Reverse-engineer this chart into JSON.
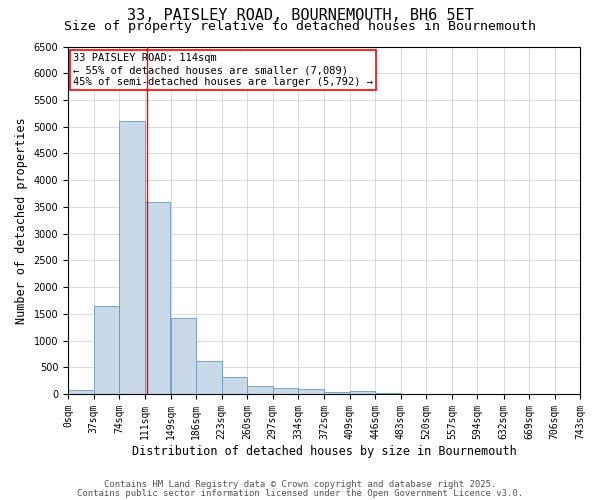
{
  "title1": "33, PAISLEY ROAD, BOURNEMOUTH, BH6 5ET",
  "title2": "Size of property relative to detached houses in Bournemouth",
  "xlabel": "Distribution of detached houses by size in Bournemouth",
  "ylabel": "Number of detached properties",
  "bar_left_edges": [
    0,
    37,
    74,
    111,
    149,
    186,
    223,
    260,
    297,
    334,
    372,
    409,
    446,
    483,
    520,
    557,
    594,
    632,
    669,
    706
  ],
  "bar_widths": [
    37,
    37,
    37,
    37,
    37,
    37,
    37,
    37,
    37,
    37,
    37,
    37,
    37,
    37,
    37,
    37,
    37,
    37,
    37,
    37
  ],
  "bar_heights": [
    75,
    1650,
    5100,
    3600,
    1420,
    610,
    310,
    155,
    110,
    85,
    35,
    50,
    25,
    5,
    5,
    3,
    2,
    1,
    1,
    1
  ],
  "bar_facecolor": "#c9d9ea",
  "bar_edgecolor": "#6699bb",
  "xtick_labels": [
    "0sqm",
    "37sqm",
    "74sqm",
    "111sqm",
    "149sqm",
    "186sqm",
    "223sqm",
    "260sqm",
    "297sqm",
    "334sqm",
    "372sqm",
    "409sqm",
    "446sqm",
    "483sqm",
    "520sqm",
    "557sqm",
    "594sqm",
    "632sqm",
    "669sqm",
    "706sqm",
    "743sqm"
  ],
  "xtick_positions": [
    0,
    37,
    74,
    111,
    149,
    186,
    223,
    260,
    297,
    334,
    372,
    409,
    446,
    483,
    520,
    557,
    594,
    632,
    669,
    706,
    743
  ],
  "ylim": [
    0,
    6500
  ],
  "xlim": [
    0,
    743
  ],
  "yticks": [
    0,
    500,
    1000,
    1500,
    2000,
    2500,
    3000,
    3500,
    4000,
    4500,
    5000,
    5500,
    6000,
    6500
  ],
  "red_line_x": 114,
  "annotation_text": "33 PAISLEY ROAD: 114sqm\n← 55% of detached houses are smaller (7,089)\n45% of semi-detached houses are larger (5,792) →",
  "footer1": "Contains HM Land Registry data © Crown copyright and database right 2025.",
  "footer2": "Contains public sector information licensed under the Open Government Licence v3.0.",
  "grid_color": "#cccccc",
  "background_color": "#ffffff",
  "title_fontsize": 11,
  "subtitle_fontsize": 9.5,
  "axis_label_fontsize": 8.5,
  "tick_fontsize": 7,
  "annotation_fontsize": 7.5,
  "footer_fontsize": 6.5
}
